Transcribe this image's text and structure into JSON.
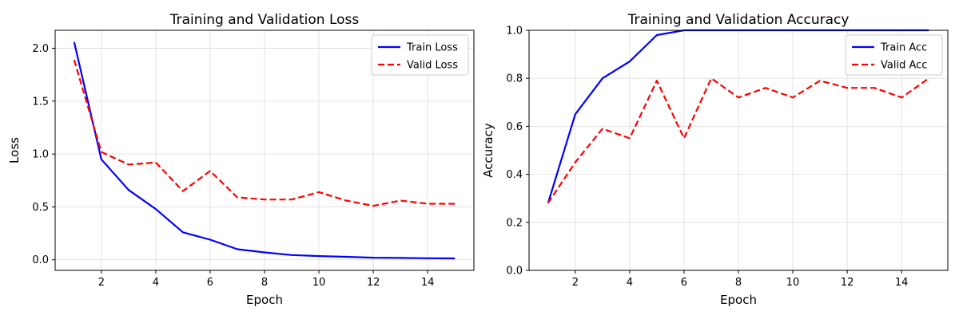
{
  "chart_data": [
    {
      "type": "line",
      "title": "Training and Validation Loss",
      "xlabel": "Epoch",
      "ylabel": "Loss",
      "xlim": [
        0.3,
        15.7
      ],
      "ylim": [
        -0.1,
        2.17
      ],
      "xticks": [
        2,
        4,
        6,
        8,
        10,
        12,
        14
      ],
      "yticks": [
        0.0,
        0.5,
        1.0,
        1.5,
        2.0
      ],
      "ytick_labels": [
        "0.0",
        "0.5",
        "1.0",
        "1.5",
        "2.0"
      ],
      "grid": true,
      "legend_position": "upper right",
      "x": [
        1,
        2,
        3,
        4,
        5,
        6,
        7,
        8,
        9,
        10,
        11,
        12,
        13,
        14,
        15
      ],
      "series": [
        {
          "name": "Train Loss",
          "color": "#0000ff",
          "style": "solid",
          "values": [
            2.06,
            0.95,
            0.66,
            0.48,
            0.26,
            0.19,
            0.1,
            0.07,
            0.045,
            0.035,
            0.028,
            0.02,
            0.018,
            0.015,
            0.013
          ]
        },
        {
          "name": "Valid Loss",
          "color": "#ff0000",
          "style": "dashed",
          "values": [
            1.89,
            1.02,
            0.9,
            0.92,
            0.65,
            0.84,
            0.59,
            0.57,
            0.57,
            0.64,
            0.56,
            0.51,
            0.56,
            0.53,
            0.53
          ]
        }
      ]
    },
    {
      "type": "line",
      "title": "Training and Validation Accuracy",
      "xlabel": "Epoch",
      "ylabel": "Accuracy",
      "xlim": [
        0.3,
        15.7
      ],
      "ylim": [
        0.0,
        1.0
      ],
      "xticks": [
        2,
        4,
        6,
        8,
        10,
        12,
        14
      ],
      "yticks": [
        0.0,
        0.2,
        0.4,
        0.6,
        0.8,
        1.0
      ],
      "ytick_labels": [
        "0.0",
        "0.2",
        "0.4",
        "0.6",
        "0.8",
        "1.0"
      ],
      "grid": true,
      "legend_position": "upper right",
      "x": [
        1,
        2,
        3,
        4,
        5,
        6,
        7,
        8,
        9,
        10,
        11,
        12,
        13,
        14,
        15
      ],
      "series": [
        {
          "name": "Train Acc",
          "color": "#0000ff",
          "style": "solid",
          "values": [
            0.28,
            0.65,
            0.8,
            0.87,
            0.98,
            1.0,
            1.0,
            1.0,
            1.0,
            1.0,
            1.0,
            1.0,
            1.0,
            1.0,
            1.0
          ]
        },
        {
          "name": "Valid Acc",
          "color": "#ff0000",
          "style": "dashed",
          "values": [
            0.28,
            0.45,
            0.59,
            0.55,
            0.79,
            0.55,
            0.8,
            0.72,
            0.76,
            0.72,
            0.79,
            0.76,
            0.76,
            0.72,
            0.8
          ]
        }
      ]
    }
  ]
}
